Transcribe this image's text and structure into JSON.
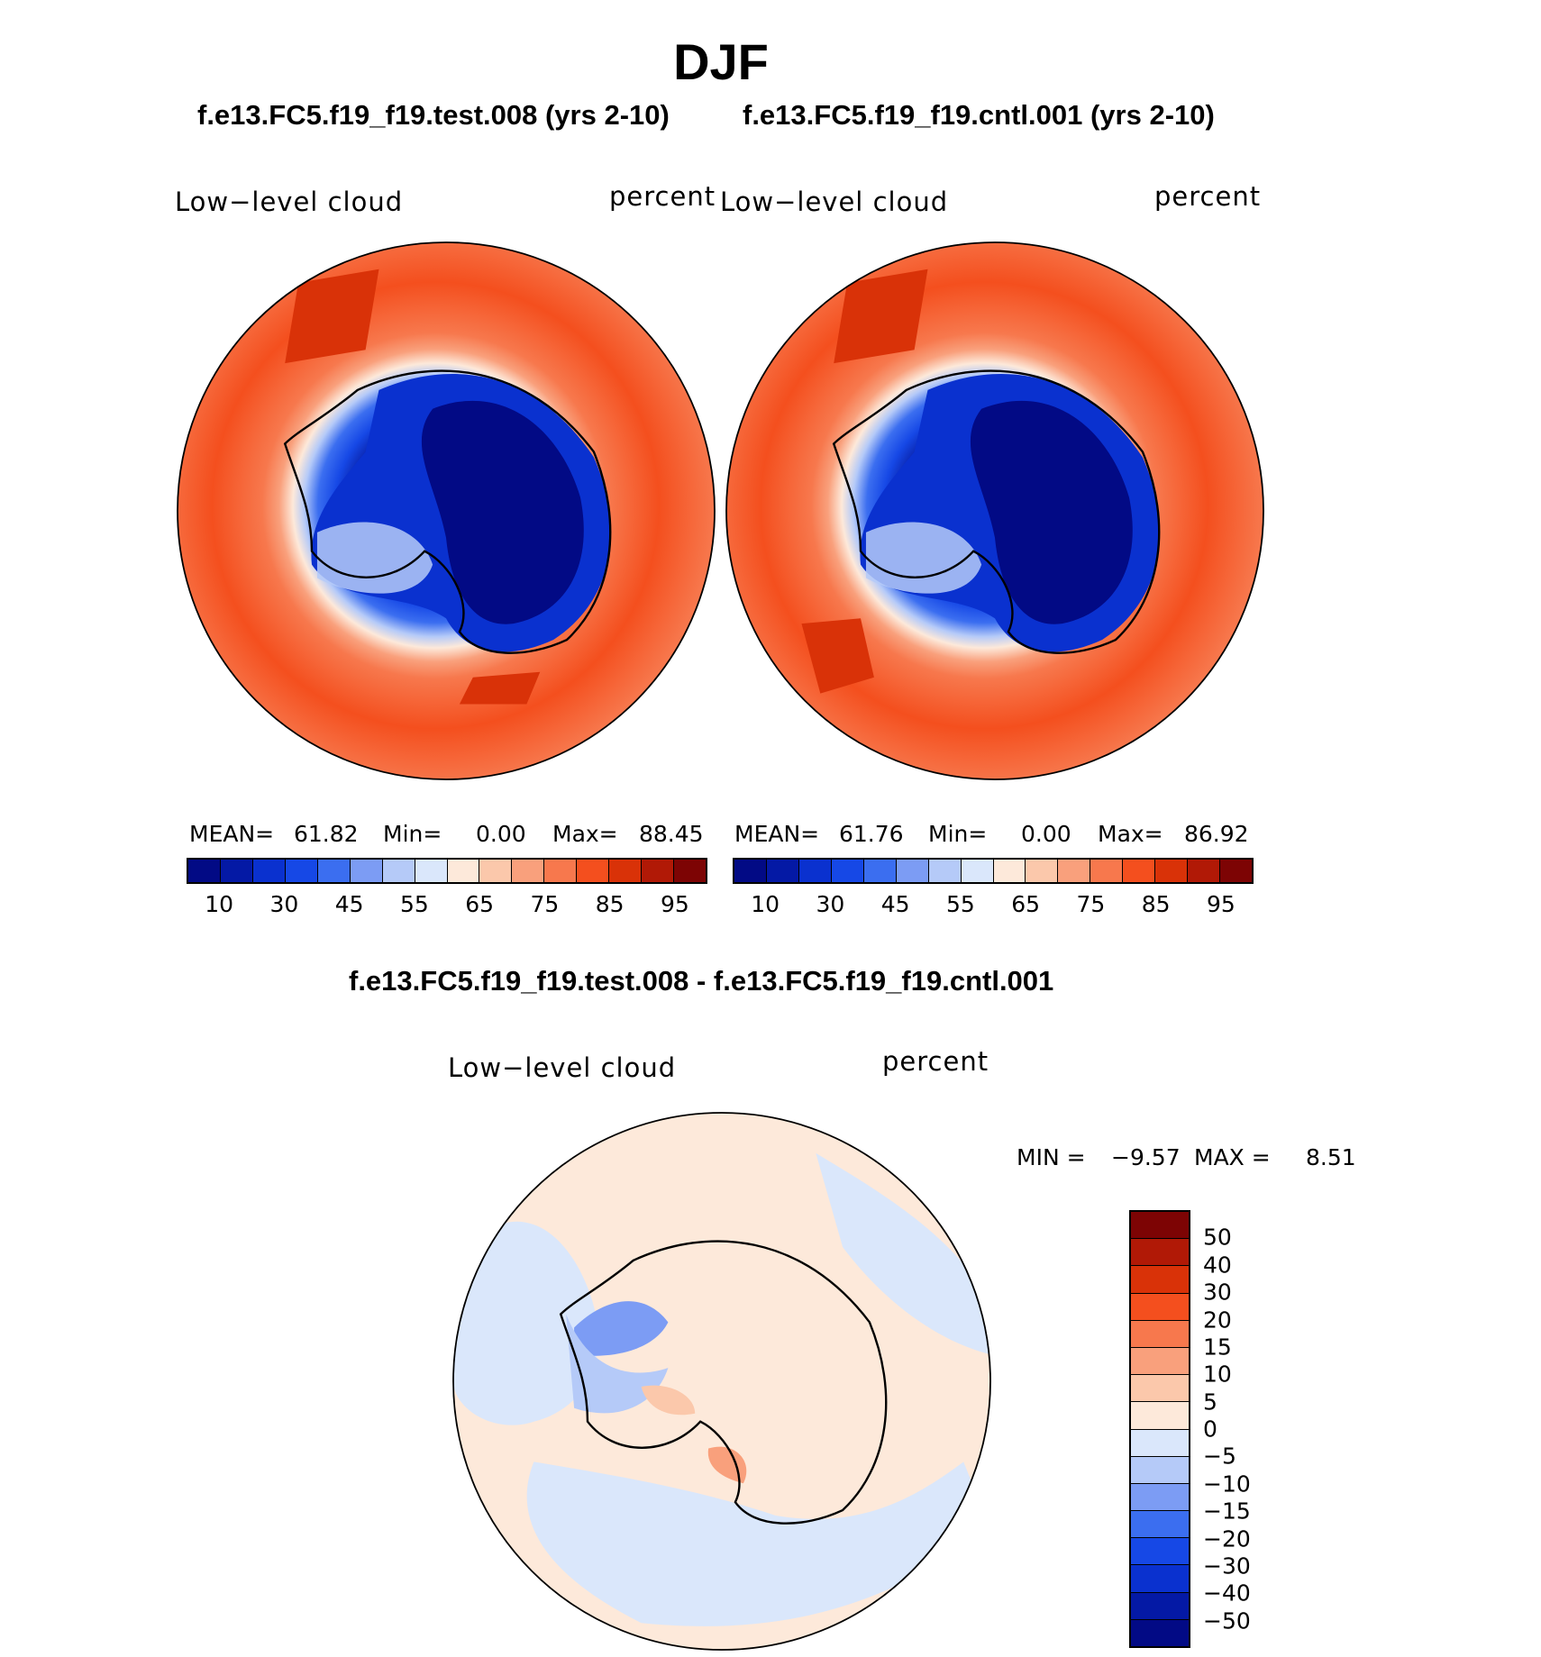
{
  "title": "DJF",
  "panels": {
    "test": {
      "title": "f.e13.FC5.f19_f19.test.008 (yrs 2-10)",
      "variable": "Low−level cloud",
      "units": "percent",
      "stats": {
        "mean_label": "MEAN=",
        "mean": "61.82",
        "min_label": "Min=",
        "min": "0.00",
        "max_label": "Max=",
        "max": "88.45"
      }
    },
    "control": {
      "title": "f.e13.FC5.f19_f19.cntl.001 (yrs 2-10)",
      "variable": "Low−level cloud",
      "units": "percent",
      "stats": {
        "mean_label": "MEAN=",
        "mean": "61.76",
        "min_label": "Min=",
        "min": "0.00",
        "max_label": "Max=",
        "max": "86.92"
      }
    },
    "diff": {
      "title": "f.e13.FC5.f19_f19.test.008 - f.e13.FC5.f19_f19.cntl.001",
      "variable": "Low−level cloud",
      "units": "percent",
      "stats": {
        "min_label": "MIN =",
        "min": "−9.57",
        "max_label": "MAX =",
        "max": "8.51"
      }
    }
  },
  "chart_data": [
    {
      "type": "heatmap",
      "title": "f.e13.FC5.f19_f19.test.008 (yrs 2-10)",
      "projection": "south polar stereographic",
      "field": "Low-level cloud (percent), DJF",
      "mean": 61.82,
      "min": 0.0,
      "max": 88.45,
      "colorbar_tick_labels": [
        "10",
        "30",
        "45",
        "55",
        "65",
        "75",
        "85",
        "95"
      ],
      "colorbar_levels": [
        5,
        10,
        20,
        30,
        40,
        45,
        50,
        55,
        60,
        65,
        70,
        75,
        80,
        85,
        90,
        95
      ],
      "colorbar_colors": [
        "#020a85",
        "#0419a5",
        "#0a31cf",
        "#1648e6",
        "#3b6ef0",
        "#7c9cf4",
        "#b5caf8",
        "#dae7fb",
        "#fde9da",
        "#fbc8ab",
        "#f9a07c",
        "#f7784d",
        "#f44f1e",
        "#d93208",
        "#b11906",
        "#7d0404"
      ]
    },
    {
      "type": "heatmap",
      "title": "f.e13.FC5.f19_f19.cntl.001 (yrs 2-10)",
      "projection": "south polar stereographic",
      "field": "Low-level cloud (percent), DJF",
      "mean": 61.76,
      "min": 0.0,
      "max": 86.92,
      "colorbar_tick_labels": [
        "10",
        "30",
        "45",
        "55",
        "65",
        "75",
        "85",
        "95"
      ],
      "colorbar_levels": [
        5,
        10,
        20,
        30,
        40,
        45,
        50,
        55,
        60,
        65,
        70,
        75,
        80,
        85,
        90,
        95
      ],
      "colorbar_colors": [
        "#020a85",
        "#0419a5",
        "#0a31cf",
        "#1648e6",
        "#3b6ef0",
        "#7c9cf4",
        "#b5caf8",
        "#dae7fb",
        "#fde9da",
        "#fbc8ab",
        "#f9a07c",
        "#f7784d",
        "#f44f1e",
        "#d93208",
        "#b11906",
        "#7d0404"
      ]
    },
    {
      "type": "heatmap",
      "title": "f.e13.FC5.f19_f19.test.008 - f.e13.FC5.f19_f19.cntl.001",
      "projection": "south polar stereographic",
      "field": "Low-level cloud difference (percent), DJF",
      "min": -9.57,
      "max": 8.51,
      "colorbar_tick_labels": [
        "50",
        "40",
        "30",
        "20",
        "15",
        "10",
        "5",
        "0",
        "−5",
        "−10",
        "−15",
        "−20",
        "−30",
        "−40",
        "−50"
      ],
      "colorbar_colors_top_to_bottom": [
        "#7d0404",
        "#b11906",
        "#d93208",
        "#f44f1e",
        "#f7784d",
        "#f9a07c",
        "#fbc8ab",
        "#fde9da",
        "#dae7fb",
        "#b5caf8",
        "#7c9cf4",
        "#3b6ef0",
        "#1648e6",
        "#0a31cf",
        "#0419a5",
        "#020a85"
      ]
    }
  ]
}
